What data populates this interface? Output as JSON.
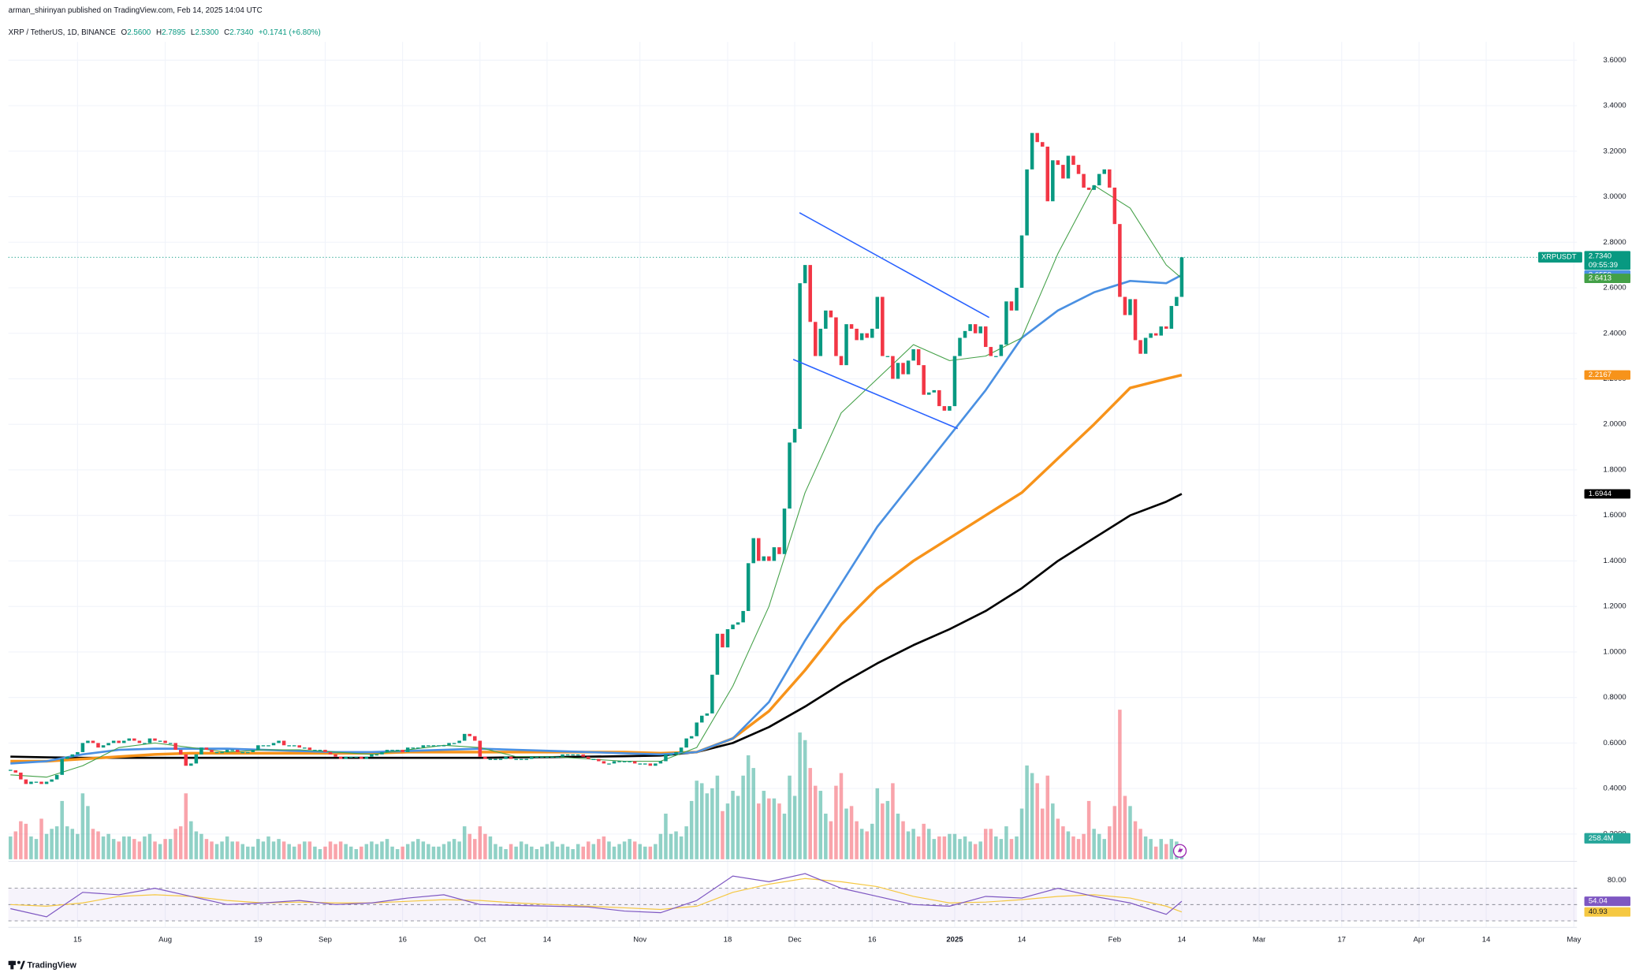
{
  "header": {
    "published": "arman_shirinyan published on TradingView.com, Feb 14, 2025 14:04 UTC",
    "symbol": "XRP / TetherUS, 1D, BINANCE",
    "quote": [
      [
        "O",
        "2.5600"
      ],
      [
        "H",
        "2.7895"
      ],
      [
        "L",
        "2.5300"
      ],
      [
        "C",
        "2.7340"
      ]
    ],
    "change": "+0.1741 (+6.80%)"
  },
  "footer": "TradingView",
  "chart_data": {
    "type": "candlestick",
    "x": [
      0,
      1,
      2,
      3,
      4,
      5,
      6,
      7,
      8,
      9,
      10,
      11,
      12,
      13,
      14,
      15,
      16,
      17,
      18,
      19,
      20,
      21,
      22,
      23,
      24,
      25,
      26,
      27,
      28,
      29,
      30,
      31,
      32,
      33,
      34,
      35,
      36,
      37,
      38,
      39,
      40,
      41,
      42,
      43,
      44,
      45,
      46,
      47,
      48,
      49,
      50,
      51,
      52,
      53,
      54,
      55,
      56,
      57,
      58,
      59,
      60,
      61,
      62,
      63,
      64,
      65,
      66,
      67,
      68,
      69,
      70,
      71,
      72,
      73,
      74,
      75,
      76,
      77,
      78,
      79,
      80,
      81,
      82,
      83,
      84,
      85,
      86,
      87,
      88,
      89,
      90,
      91,
      92,
      93,
      94,
      95,
      96,
      97,
      98,
      99,
      100,
      101,
      102,
      103,
      104,
      105,
      106,
      107,
      108,
      109,
      110,
      111,
      112,
      113,
      114,
      115,
      116,
      117,
      118,
      119,
      120,
      121,
      122,
      123,
      124,
      125,
      126,
      127,
      128,
      129,
      130,
      131,
      132,
      133,
      134,
      135,
      136,
      137,
      138,
      139,
      140,
      141,
      142,
      143,
      144,
      145,
      146,
      147,
      148,
      149,
      150,
      151,
      152,
      153,
      154,
      155,
      156,
      157,
      158,
      159,
      160,
      161,
      162,
      163,
      164,
      165,
      166,
      167,
      168,
      169,
      170,
      171,
      172,
      173,
      174,
      175,
      176,
      177,
      178,
      179,
      180,
      181,
      182,
      183,
      184,
      185,
      186,
      187,
      188,
      189,
      190,
      191,
      192,
      193,
      194,
      195,
      196,
      197,
      198,
      199,
      200,
      201,
      202,
      203,
      204,
      205,
      206,
      207,
      208,
      209,
      210,
      211,
      212,
      213,
      214,
      215,
      216,
      217,
      218,
      219,
      220,
      221,
      222,
      223,
      224,
      225,
      226,
      227
    ],
    "close": [
      0.48,
      0.47,
      0.44,
      0.42,
      0.43,
      0.43,
      0.42,
      0.43,
      0.44,
      0.46,
      0.53,
      0.54,
      0.55,
      0.56,
      0.6,
      0.61,
      0.6,
      0.58,
      0.59,
      0.6,
      0.61,
      0.6,
      0.61,
      0.62,
      0.61,
      0.6,
      0.6,
      0.62,
      0.61,
      0.61,
      0.6,
      0.6,
      0.57,
      0.55,
      0.5,
      0.51,
      0.55,
      0.58,
      0.57,
      0.56,
      0.56,
      0.56,
      0.57,
      0.57,
      0.56,
      0.56,
      0.56,
      0.57,
      0.59,
      0.59,
      0.59,
      0.6,
      0.61,
      0.59,
      0.59,
      0.59,
      0.58,
      0.58,
      0.57,
      0.57,
      0.57,
      0.56,
      0.55,
      0.54,
      0.53,
      0.54,
      0.54,
      0.54,
      0.53,
      0.54,
      0.55,
      0.55,
      0.56,
      0.57,
      0.57,
      0.57,
      0.56,
      0.58,
      0.58,
      0.58,
      0.59,
      0.59,
      0.59,
      0.59,
      0.59,
      0.6,
      0.6,
      0.61,
      0.64,
      0.63,
      0.61,
      0.54,
      0.53,
      0.53,
      0.53,
      0.53,
      0.54,
      0.53,
      0.53,
      0.53,
      0.53,
      0.54,
      0.54,
      0.54,
      0.54,
      0.54,
      0.54,
      0.55,
      0.55,
      0.55,
      0.55,
      0.54,
      0.53,
      0.53,
      0.52,
      0.51,
      0.51,
      0.52,
      0.52,
      0.52,
      0.52,
      0.51,
      0.51,
      0.51,
      0.5,
      0.51,
      0.52,
      0.55,
      0.55,
      0.56,
      0.58,
      0.62,
      0.63,
      0.69,
      0.72,
      0.73,
      0.9,
      1.08,
      1.02,
      1.1,
      1.12,
      1.13,
      1.18,
      1.39,
      1.5,
      1.4,
      1.42,
      1.4,
      1.46,
      1.43,
      1.63,
      1.92,
      1.98,
      2.62,
      2.7,
      2.45,
      2.3,
      2.42,
      2.5,
      2.47,
      2.3,
      2.26,
      2.44,
      2.42,
      2.37,
      2.4,
      2.38,
      2.42,
      2.56,
      2.3,
      2.3,
      2.2,
      2.27,
      2.22,
      2.28,
      2.33,
      2.26,
      2.13,
      2.14,
      2.15,
      2.08,
      2.06,
      2.08,
      2.3,
      2.38,
      2.41,
      2.44,
      2.4,
      2.43,
      2.34,
      2.3,
      2.3,
      2.35,
      2.54,
      2.5,
      2.6,
      2.83,
      3.12,
      3.28,
      3.24,
      3.22,
      2.98,
      3.16,
      3.14,
      3.08,
      3.18,
      3.14,
      3.1,
      3.04,
      3.03,
      3.05,
      3.1,
      3.12,
      3.04,
      2.88,
      2.56,
      2.48,
      2.55,
      2.37,
      2.31,
      2.38,
      2.4,
      2.39,
      2.43,
      2.42,
      2.52,
      2.56,
      2.734
    ],
    "volume": [
      900,
      1100,
      1500,
      1400,
      900,
      800,
      1600,
      1000,
      1200,
      1300,
      2300,
      1300,
      1200,
      1000,
      2600,
      2100,
      1200,
      1100,
      900,
      1000,
      800,
      700,
      900,
      900,
      800,
      700,
      900,
      1000,
      700,
      600,
      800,
      800,
      1200,
      1300,
      2600,
      1500,
      1100,
      1000,
      800,
      700,
      600,
      700,
      900,
      700,
      700,
      600,
      500,
      500,
      800,
      700,
      900,
      700,
      800,
      700,
      600,
      500,
      600,
      700,
      700,
      500,
      400,
      500,
      700,
      600,
      700,
      600,
      500,
      400,
      500,
      600,
      700,
      600,
      700,
      800,
      500,
      400,
      500,
      600,
      700,
      800,
      700,
      600,
      500,
      500,
      600,
      700,
      800,
      700,
      1300,
      1000,
      800,
      1300,
      1000,
      900,
      600,
      500,
      400,
      600,
      500,
      700,
      600,
      500,
      400,
      500,
      600,
      700,
      500,
      600,
      500,
      400,
      600,
      500,
      700,
      600,
      800,
      900,
      700,
      500,
      600,
      700,
      800,
      700,
      600,
      500,
      500,
      600,
      1000,
      1800,
      1000,
      1100,
      900,
      1300,
      2300,
      3100,
      3000,
      2600,
      2800,
      3300,
      1900,
      2200,
      2700,
      2500,
      3300,
      4100,
      3600,
      2200,
      2700,
      2400,
      2400,
      2200,
      1800,
      3300,
      2500,
      5000,
      4700,
      3600,
      2900,
      2700,
      1800,
      1500,
      2900,
      3400,
      2000,
      2100,
      1500,
      1200,
      1100,
      1400,
      2800,
      2200,
      2300,
      3000,
      1800,
      1500,
      1100,
      1200,
      900,
      1400,
      1200,
      800,
      900,
      900,
      1000,
      1000,
      800,
      900,
      700,
      600,
      700,
      1200,
      1200,
      900,
      800,
      1300,
      800,
      900,
      2000,
      3700,
      3400,
      3000,
      2000,
      3300,
      2200,
      1600,
      1300,
      1100,
      900,
      800,
      1000,
      2300,
      1200,
      1000,
      800,
      1300,
      2100,
      5900,
      2500,
      2100,
      1500,
      1200,
      900,
      800,
      500,
      800,
      600,
      800,
      700,
      258.4
    ],
    "last_close_label": "2.7340",
    "last_volume_label": "258.4M",
    "symbol_tag": "XRPUSDT",
    "countdown": "09:55:39",
    "color_up": "#089981",
    "color_down": "#f23645",
    "volume_lim": [
      0,
      6200
    ],
    "xlim": [
      -0.4,
      303.6
    ],
    "xticks": [
      {
        "value": 13,
        "label": "15"
      },
      {
        "value": 30,
        "label": "Aug"
      },
      {
        "value": 48,
        "label": "19"
      },
      {
        "value": 61,
        "label": "Sep"
      },
      {
        "value": 76,
        "label": "16"
      },
      {
        "value": 91,
        "label": "Oct"
      },
      {
        "value": 104,
        "label": "14"
      },
      {
        "value": 122,
        "label": "Nov"
      },
      {
        "value": 139,
        "label": "18"
      },
      {
        "value": 152,
        "label": "Dec"
      },
      {
        "value": 167,
        "label": "16"
      },
      {
        "value": 183,
        "label": "2025"
      },
      {
        "value": 196,
        "label": "14"
      },
      {
        "value": 214,
        "label": "Feb"
      },
      {
        "value": 227,
        "label": "14"
      },
      {
        "value": 242,
        "label": "Mar"
      },
      {
        "value": 258,
        "label": "17"
      },
      {
        "value": 273,
        "label": "Apr"
      },
      {
        "value": 286,
        "label": "14"
      },
      {
        "value": 303,
        "label": "May"
      }
    ],
    "ylim": [
      0.08,
      3.68
    ],
    "yticks": [
      {
        "value": 0.2,
        "label": "0.2000"
      },
      {
        "value": 0.4,
        "label": "0.4000"
      },
      {
        "value": 0.6,
        "label": "0.6000"
      },
      {
        "value": 0.8,
        "label": "0.8000"
      },
      {
        "value": 1.0,
        "label": "1.0000"
      },
      {
        "value": 1.2,
        "label": "1.2000"
      },
      {
        "value": 1.4,
        "label": "1.4000"
      },
      {
        "value": 1.6,
        "label": "1.6000"
      },
      {
        "value": 1.8,
        "label": "1.8000"
      },
      {
        "value": 2.0,
        "label": "2.0000"
      },
      {
        "value": 2.2,
        "label": "2.2000"
      },
      {
        "value": 2.4,
        "label": "2.4000"
      },
      {
        "value": 2.6,
        "label": "2.6000"
      },
      {
        "value": 2.8,
        "label": "2.8000"
      },
      {
        "value": 3.0,
        "label": "3.0000"
      },
      {
        "value": 3.2,
        "label": "3.2000"
      },
      {
        "value": 3.4,
        "label": "3.4000"
      },
      {
        "value": 3.6,
        "label": "3.6000"
      }
    ],
    "grid": true,
    "ma_x": [
      0,
      7,
      14,
      21,
      28,
      35,
      42,
      49,
      56,
      63,
      70,
      77,
      84,
      91,
      98,
      105,
      112,
      119,
      126,
      133,
      140,
      147,
      154,
      161,
      168,
      175,
      182,
      189,
      196,
      203,
      210,
      217,
      224,
      227
    ],
    "moving_averages": [
      {
        "color": "#000000",
        "width": 2,
        "values": [
          0.54,
          0.537,
          0.535,
          0.535,
          0.535,
          0.535,
          0.535,
          0.535,
          0.535,
          0.535,
          0.535,
          0.535,
          0.535,
          0.535,
          0.537,
          0.538,
          0.54,
          0.542,
          0.545,
          0.56,
          0.6,
          0.67,
          0.76,
          0.86,
          0.95,
          1.03,
          1.1,
          1.18,
          1.28,
          1.4,
          1.5,
          1.6,
          1.66,
          1.6944
        ]
      },
      {
        "color": "#f7931a",
        "width": 2.6,
        "values": [
          0.52,
          0.52,
          0.53,
          0.54,
          0.55,
          0.555,
          0.555,
          0.555,
          0.555,
          0.555,
          0.555,
          0.56,
          0.56,
          0.56,
          0.56,
          0.56,
          0.56,
          0.56,
          0.555,
          0.56,
          0.62,
          0.74,
          0.92,
          1.12,
          1.28,
          1.4,
          1.5,
          1.6,
          1.7,
          1.85,
          2.0,
          2.16,
          2.2,
          2.2167
        ]
      },
      {
        "color": "#4a90e2",
        "width": 2,
        "values": [
          0.51,
          0.52,
          0.55,
          0.57,
          0.575,
          0.575,
          0.575,
          0.57,
          0.565,
          0.56,
          0.56,
          0.565,
          0.57,
          0.575,
          0.57,
          0.565,
          0.56,
          0.555,
          0.55,
          0.56,
          0.62,
          0.78,
          1.05,
          1.3,
          1.55,
          1.75,
          1.95,
          2.15,
          2.38,
          2.5,
          2.58,
          2.63,
          2.62,
          2.6559
        ]
      },
      {
        "color": "#43a047",
        "width": 0.8,
        "values": [
          0.46,
          0.45,
          0.5,
          0.58,
          0.6,
          0.58,
          0.56,
          0.57,
          0.57,
          0.56,
          0.55,
          0.57,
          0.59,
          0.58,
          0.54,
          0.54,
          0.53,
          0.52,
          0.52,
          0.58,
          0.85,
          1.2,
          1.7,
          2.05,
          2.2,
          2.35,
          2.28,
          2.3,
          2.38,
          2.75,
          3.05,
          2.95,
          2.7,
          2.6413
        ]
      }
    ],
    "rsi": {
      "ylim": [
        22,
        103
      ],
      "yticks": [
        {
          "value": 80,
          "label": "80.00"
        }
      ],
      "bands": [
        30,
        50,
        70
      ],
      "color": "#7e57c2",
      "ma_color": "#f5c842",
      "values": [
        45,
        35,
        65,
        62,
        70,
        60,
        50,
        52,
        55,
        50,
        52,
        58,
        62,
        50,
        49,
        48,
        47,
        42,
        40,
        55,
        85,
        78,
        88,
        70,
        60,
        50,
        48,
        60,
        58,
        70,
        60,
        52,
        38,
        54.04
      ],
      "ma_values": [
        50,
        48,
        52,
        60,
        62,
        60,
        55,
        52,
        53,
        52,
        52,
        54,
        56,
        55,
        52,
        50,
        48,
        46,
        44,
        48,
        65,
        75,
        82,
        78,
        72,
        60,
        52,
        53,
        56,
        60,
        62,
        58,
        48,
        40.93
      ]
    }
  }
}
